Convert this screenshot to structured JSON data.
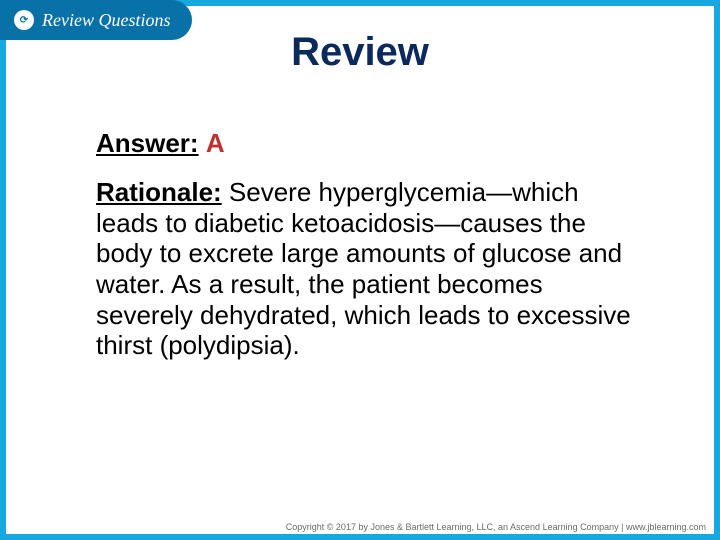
{
  "colors": {
    "slide_bg": "#18a8e0",
    "tab_bg": "#0771a8",
    "tab_text": "#ffffff",
    "tab_icon_bg": "#ffffff",
    "tab_icon_fg": "#0771a8",
    "title_color": "#0b2a5b",
    "body_bg": "#ffffff",
    "answer_label_color": "#000000",
    "answer_value_color": "#c0302c",
    "rationale_color": "#000000",
    "copyright_color": "#6a6a6a"
  },
  "tab": {
    "icon_text": "⟳",
    "label": "Review Questions"
  },
  "title": "Review",
  "answer": {
    "label": "Answer:",
    "value": "A"
  },
  "rationale": {
    "label": "Rationale:",
    "text": " Severe hyperglycemia—which leads to diabetic ketoacidosis—causes the body to excrete large amounts of glucose and water. As a result, the patient becomes severely dehydrated, which leads to excessive thirst (polydipsia)."
  },
  "copyright": "Copyright © 2017 by Jones & Bartlett Learning, LLC, an Ascend Learning Company  |  www.jblearning.com"
}
